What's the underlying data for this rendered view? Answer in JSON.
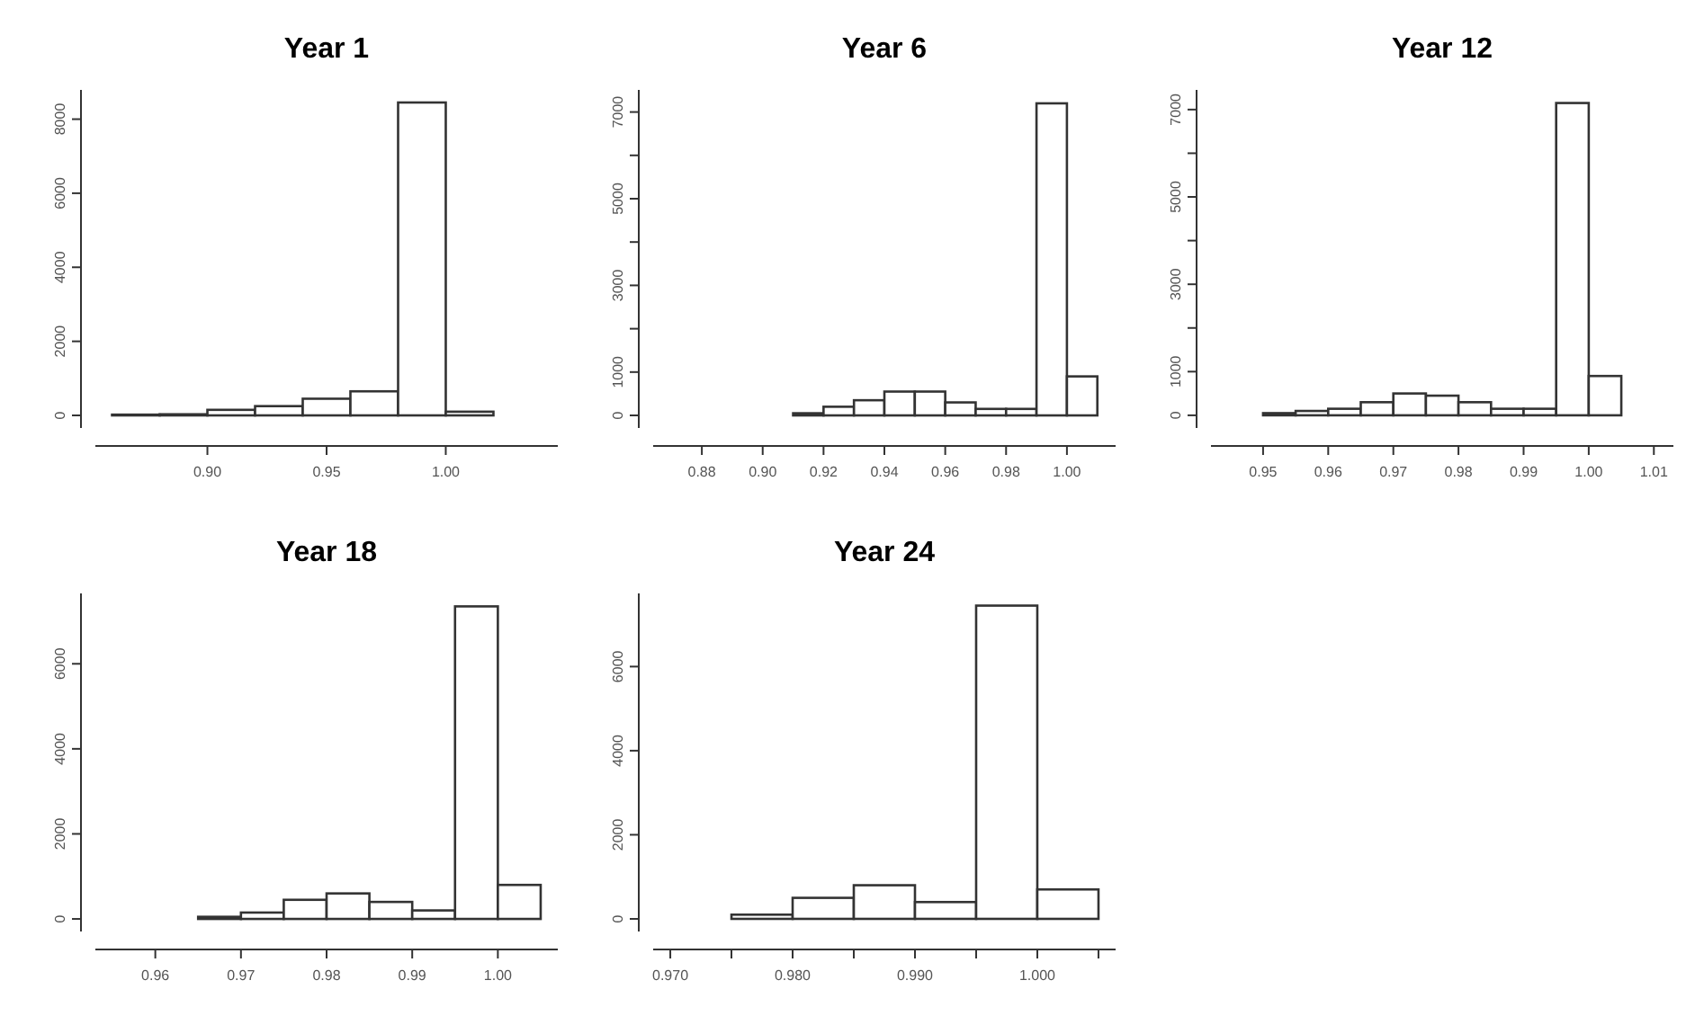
{
  "chart_data": [
    {
      "type": "histogram",
      "title": "Year 1",
      "color": "#ffffff",
      "bins": [
        0.86,
        0.88,
        0.9,
        0.92,
        0.94,
        0.96,
        0.98,
        1.0,
        1.02,
        1.04
      ],
      "values": [
        20,
        30,
        150,
        250,
        450,
        650,
        8450,
        100,
        0
      ],
      "xlim": [
        0.853,
        1.047
      ],
      "ylim": [
        -340,
        8790
      ],
      "xticks": [
        {
          "value": 0.9,
          "label": "0.90"
        },
        {
          "value": 0.95,
          "label": "0.95"
        },
        {
          "value": 1.0,
          "label": "1.00"
        }
      ],
      "yticks": [
        0,
        2000,
        4000,
        6000,
        8000
      ]
    },
    {
      "type": "histogram",
      "title": "Year 6",
      "color": "#ffffff",
      "bins": [
        0.87,
        0.88,
        0.89,
        0.9,
        0.91,
        0.92,
        0.93,
        0.94,
        0.95,
        0.96,
        0.97,
        0.98,
        0.99,
        1.0,
        1.01
      ],
      "values": [
        0,
        0,
        0,
        0,
        50,
        200,
        350,
        550,
        550,
        300,
        150,
        150,
        7200,
        900
      ],
      "xlim": [
        0.864,
        1.016
      ],
      "ylim": [
        -290,
        7510
      ],
      "xticks": [
        {
          "value": 0.88,
          "label": "0.88"
        },
        {
          "value": 0.9,
          "label": "0.90"
        },
        {
          "value": 0.92,
          "label": "0.92"
        },
        {
          "value": 0.94,
          "label": "0.94"
        },
        {
          "value": 0.96,
          "label": "0.96"
        },
        {
          "value": 0.98,
          "label": "0.98"
        },
        {
          "value": 1.0,
          "label": "1.00"
        }
      ],
      "yticks": [
        0,
        1000,
        {
          "value": 2000,
          "label": null
        },
        3000,
        {
          "value": 4000,
          "label": null
        },
        5000,
        {
          "value": 6000,
          "label": null
        },
        7000
      ]
    },
    {
      "type": "histogram",
      "title": "Year 12",
      "color": "#ffffff",
      "bins": [
        0.945,
        0.95,
        0.955,
        0.96,
        0.965,
        0.97,
        0.975,
        0.98,
        0.985,
        0.99,
        0.995,
        1.0,
        1.005,
        1.01
      ],
      "values": [
        0,
        50,
        100,
        150,
        300,
        500,
        450,
        300,
        150,
        150,
        7150,
        900,
        0
      ],
      "xlim": [
        0.942,
        1.013
      ],
      "ylim": [
        -290,
        7450
      ],
      "xticks": [
        0.95,
        0.96,
        0.97,
        0.98,
        0.99,
        {
          "value": 1.0,
          "label": "1.00"
        },
        1.01
      ],
      "yticks": [
        0,
        1000,
        {
          "value": 2000,
          "label": null
        },
        3000,
        {
          "value": 4000,
          "label": null
        },
        5000,
        {
          "value": 6000,
          "label": null
        },
        7000
      ]
    },
    {
      "type": "histogram",
      "title": "Year 18",
      "color": "#ffffff",
      "bins": [
        0.955,
        0.96,
        0.965,
        0.97,
        0.975,
        0.98,
        0.985,
        0.99,
        0.995,
        1.0,
        1.005
      ],
      "values": [
        0,
        0,
        50,
        150,
        450,
        600,
        400,
        200,
        7350,
        800
      ],
      "xlim": [
        0.953,
        1.007
      ],
      "ylim": [
        -295,
        7655
      ],
      "xticks": [
        0.96,
        0.97,
        0.98,
        0.99,
        {
          "value": 1.0,
          "label": "1.00"
        }
      ],
      "yticks": [
        0,
        2000,
        4000,
        6000
      ]
    },
    {
      "type": "histogram",
      "title": "Year 24",
      "color": "#ffffff",
      "bins": [
        0.97,
        0.975,
        0.98,
        0.985,
        0.99,
        0.995,
        1.0,
        1.005
      ],
      "values": [
        0,
        100,
        500,
        800,
        400,
        7450,
        700
      ],
      "xlim": [
        0.9686,
        1.0064
      ],
      "ylim": [
        -300,
        7740
      ],
      "xticks": [
        {
          "value": 0.97,
          "label": "0.970"
        },
        {
          "value": 0.975,
          "label": null
        },
        {
          "value": 0.98,
          "label": "0.980"
        },
        {
          "value": 0.985,
          "label": null
        },
        {
          "value": 0.99,
          "label": "0.990"
        },
        {
          "value": 0.995,
          "label": null
        },
        {
          "value": 1.0,
          "label": "1.000"
        },
        {
          "value": 1.005,
          "label": null
        }
      ],
      "yticks": [
        0,
        2000,
        4000,
        6000
      ]
    }
  ]
}
